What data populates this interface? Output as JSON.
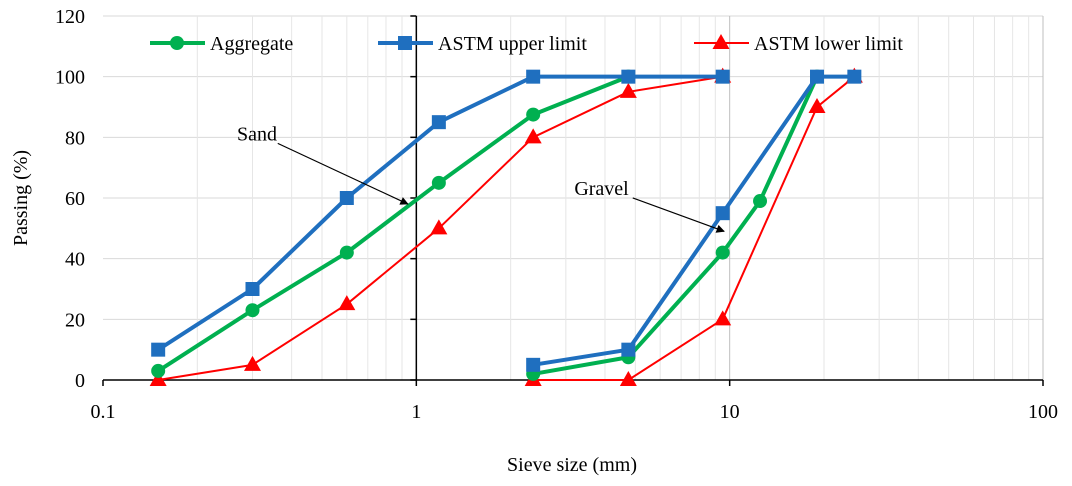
{
  "chart_data": {
    "type": "line",
    "xlabel": "Sieve size (mm)",
    "ylabel": "Passing (%)",
    "x_scale": "log",
    "xlim": [
      0.1,
      100
    ],
    "ylim": [
      0,
      120
    ],
    "x_ticks": [
      0.1,
      1,
      10,
      100
    ],
    "x_tick_labels": [
      "0.1",
      "1",
      "10",
      "100"
    ],
    "y_ticks": [
      0,
      20,
      40,
      60,
      80,
      100,
      120
    ],
    "y_tick_labels": [
      "0",
      "20",
      "40",
      "60",
      "80",
      "100",
      "120"
    ],
    "grid": true,
    "legend_position": "top",
    "series": [
      {
        "name": "Aggregate",
        "color": "#00b050",
        "marker": "circle",
        "segments": [
          [
            [
              0.15,
              3
            ],
            [
              0.3,
              23
            ],
            [
              0.6,
              42
            ],
            [
              1.18,
              65
            ],
            [
              2.36,
              87.5
            ],
            [
              4.75,
              100
            ]
          ],
          [
            [
              2.36,
              2
            ],
            [
              4.75,
              7.5
            ],
            [
              9.5,
              42
            ],
            [
              12.5,
              59
            ],
            [
              19,
              100
            ]
          ]
        ]
      },
      {
        "name": "ASTM upper limit",
        "color": "#1f6fbf",
        "marker": "square",
        "segments": [
          [
            [
              0.15,
              10
            ],
            [
              0.3,
              30
            ],
            [
              0.6,
              60
            ],
            [
              1.18,
              85
            ],
            [
              2.36,
              100
            ],
            [
              4.75,
              100
            ],
            [
              9.5,
              100
            ]
          ],
          [
            [
              2.36,
              5
            ],
            [
              4.75,
              10
            ],
            [
              9.5,
              55
            ],
            [
              19,
              100
            ],
            [
              25,
              100
            ]
          ]
        ]
      },
      {
        "name": "ASTM lower limit",
        "color": "#ff0000",
        "marker": "triangle",
        "segments": [
          [
            [
              0.15,
              0
            ],
            [
              0.3,
              5
            ],
            [
              0.6,
              25
            ],
            [
              1.18,
              50
            ],
            [
              2.36,
              80
            ],
            [
              4.75,
              95
            ],
            [
              9.5,
              100
            ]
          ],
          [
            [
              2.36,
              0
            ],
            [
              4.75,
              0
            ],
            [
              9.5,
              20
            ],
            [
              19,
              90
            ],
            [
              25,
              100
            ]
          ]
        ]
      }
    ],
    "annotations": [
      {
        "text": "Sand",
        "label_at": [
          0.31,
          79
        ],
        "arrow_to": [
          0.94,
          58
        ]
      },
      {
        "text": "Gravel",
        "label_at": [
          3.9,
          61
        ],
        "arrow_to": [
          9.6,
          49
        ]
      }
    ]
  }
}
